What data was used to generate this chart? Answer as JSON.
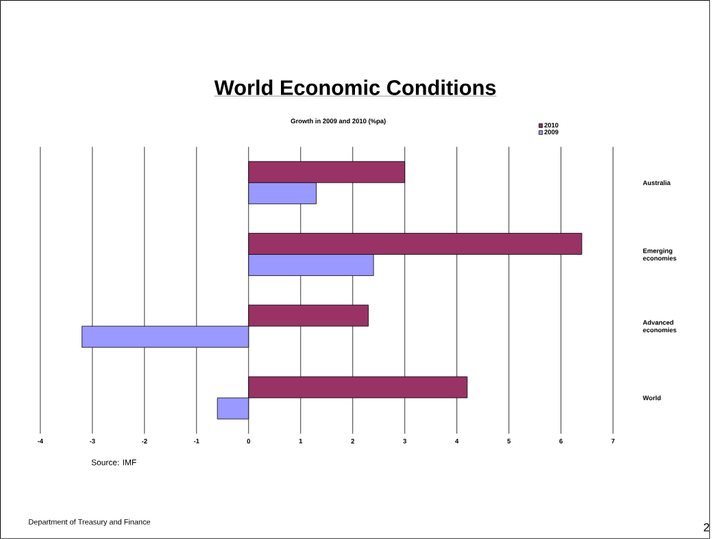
{
  "chart_data": {
    "type": "bar",
    "orientation": "horizontal",
    "title": "World Economic Conditions",
    "subtitle": "Growth in 2009 and 2010 (%pa)",
    "categories": [
      "Australia",
      "Emerging economies",
      "Advanced economies",
      "World"
    ],
    "series": [
      {
        "name": "2010",
        "color": "#993366",
        "values": [
          3.0,
          6.4,
          2.3,
          4.2
        ]
      },
      {
        "name": "2009",
        "color": "#9999ff",
        "values": [
          1.3,
          2.4,
          -3.2,
          -0.6
        ]
      }
    ],
    "xlim": [
      -4,
      7
    ],
    "xticks": [
      -4,
      -3,
      -2,
      -1,
      0,
      1,
      2,
      3,
      4,
      5,
      6,
      7
    ],
    "grid": "x",
    "legend": "top right",
    "annotations": [
      "Source: IMF",
      "Department of Treasury and Finance",
      "2"
    ]
  }
}
